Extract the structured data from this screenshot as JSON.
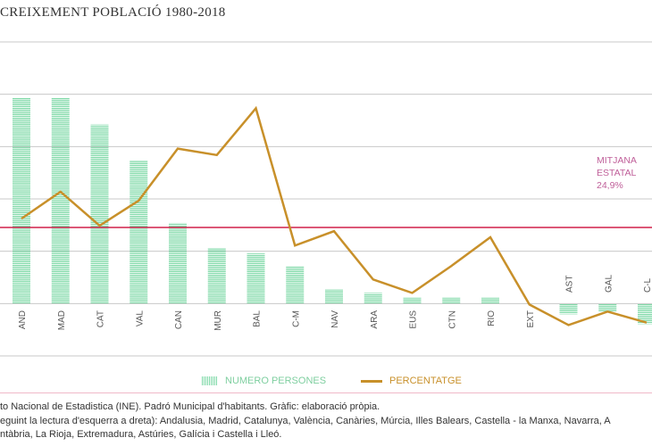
{
  "chart_data": {
    "type": "bar+line",
    "title": "CREIXEMENT POBLACIÓ 1980-2018",
    "categories": [
      "AND",
      "MAD",
      "CAT",
      "VAL",
      "CAN",
      "MUR",
      "BAL",
      "C-M",
      "NAV",
      "ARA",
      "EUS",
      "CTN",
      "RIO",
      "EXT",
      "AST",
      "GAL",
      "C-L"
    ],
    "series": [
      {
        "name": "NUMERO PERSONES",
        "type": "bar",
        "color": "#7fd9a8",
        "values": [
          67.4,
          67.4,
          58.6,
          46.9,
          26.4,
          18.2,
          16.4,
          12.3,
          4.7,
          3.5,
          2.1,
          2.1,
          2.1,
          0,
          -3.5,
          -2.6,
          -6.7
        ]
      },
      {
        "name": "PERCENTATGE",
        "type": "line",
        "color": "#c8902a",
        "values": [
          27.8,
          36.6,
          25.5,
          33.7,
          50.7,
          48.6,
          63.9,
          19.0,
          23.7,
          7.9,
          3.5,
          12.3,
          21.7,
          -0.3,
          -7.0,
          -2.6,
          -6.2
        ]
      }
    ],
    "reference_line": {
      "value": 24.9,
      "label_lines": [
        "MITJANA",
        "ESTATAL",
        "24,9%"
      ],
      "color": "#d0204a"
    },
    "ylim": [
      -17.1,
      85.6
    ],
    "grid": true,
    "legend_position": "bottom-center"
  },
  "notes": [
    "to Nacional de Estadistica (INE). Padró Municipal d'habitants. Gràfic: elaboració pròpia.",
    "eguint la lectura d'esquerra a dreta): Andalusia, Madrid, Catalunya, València, Canàries, Múrcia, Illes Balears, Castella - la Manxa, Navarra, A",
    "ntàbria, La Rioja, Extremadura, Astúries, Galícia i Castella i Lleó."
  ]
}
